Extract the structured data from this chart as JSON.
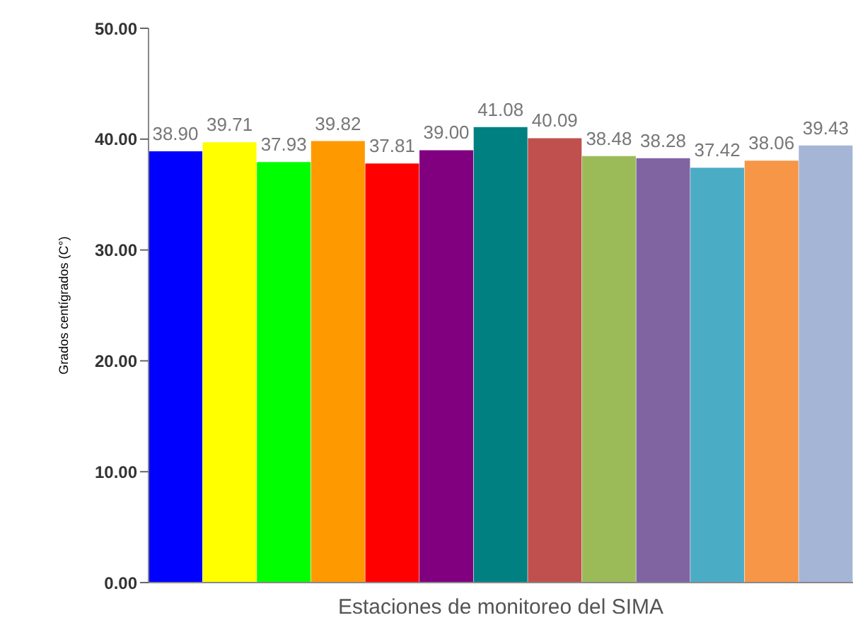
{
  "chart_data": {
    "type": "bar",
    "xlabel": "Estaciones de monitoreo del SIMA",
    "ylabel": "Grados centígrados (C°)",
    "categories": [
      null,
      null,
      null,
      null,
      null,
      null,
      null,
      null,
      null,
      null,
      null,
      null,
      null
    ],
    "values": [
      38.9,
      39.71,
      37.93,
      39.82,
      37.81,
      39.0,
      41.08,
      40.09,
      38.48,
      38.28,
      37.42,
      38.06,
      39.43
    ],
    "colors": [
      "#0000ff",
      "#ffff00",
      "#00ff00",
      "#ff9900",
      "#ff0000",
      "#800080",
      "#008080",
      "#c0504d",
      "#9bbb59",
      "#8064a2",
      "#4bacc6",
      "#f79646",
      "#a5b5d6"
    ],
    "value_labels": [
      "38.90",
      "39.71",
      "37.93",
      "39.82",
      "37.81",
      "39.00",
      "41.08",
      "40.09",
      "38.48",
      "38.28",
      "37.42",
      "38.06",
      "39.43"
    ],
    "ylim": [
      0,
      50
    ],
    "yticks": [
      {
        "value": 0,
        "label": "0.00"
      },
      {
        "value": 10,
        "label": "10.00"
      },
      {
        "value": 20,
        "label": "20.00"
      },
      {
        "value": 30,
        "label": "30.00"
      },
      {
        "value": 40,
        "label": "40.00"
      },
      {
        "value": 50,
        "label": "50.00"
      }
    ],
    "grid": false
  }
}
